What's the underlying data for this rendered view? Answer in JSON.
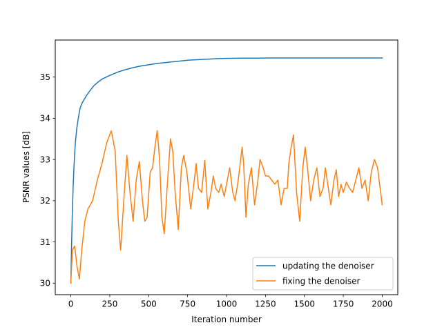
{
  "chart_data": {
    "type": "line",
    "title": "",
    "xlabel": "Iteration number",
    "ylabel": "PSNR values [dB]",
    "xlim": [
      -100,
      2100
    ],
    "ylim": [
      29.72,
      35.9
    ],
    "xticks": [
      0,
      250,
      500,
      750,
      1000,
      1250,
      1500,
      1750,
      2000
    ],
    "yticks": [
      30,
      31,
      32,
      33,
      34,
      35
    ],
    "grid": false,
    "legend_position": "lower-right",
    "series": [
      {
        "name": "updating the denoiser",
        "color": "#1f77b4",
        "x": [
          0,
          5,
          10,
          15,
          20,
          25,
          30,
          40,
          50,
          60,
          70,
          80,
          100,
          125,
          150,
          175,
          200,
          250,
          300,
          350,
          400,
          450,
          500,
          550,
          600,
          650,
          700,
          750,
          800,
          850,
          900,
          950,
          1000,
          1100,
          1200,
          1300,
          1400,
          1500,
          1600,
          1700,
          1800,
          1900,
          2000
        ],
        "y": [
          30.0,
          30.95,
          31.75,
          32.35,
          32.8,
          33.15,
          33.45,
          33.8,
          34.05,
          34.25,
          34.35,
          34.42,
          34.55,
          34.68,
          34.8,
          34.88,
          34.95,
          35.04,
          35.12,
          35.18,
          35.23,
          35.27,
          35.3,
          35.33,
          35.35,
          35.37,
          35.39,
          35.41,
          35.42,
          35.43,
          35.44,
          35.45,
          35.455,
          35.46,
          35.46,
          35.465,
          35.465,
          35.465,
          35.465,
          35.465,
          35.465,
          35.465,
          35.465
        ]
      },
      {
        "name": "fixing the denoiser",
        "color": "#ff7f0e",
        "x": [
          0,
          10,
          25,
          40,
          55,
          70,
          90,
          110,
          140,
          170,
          200,
          230,
          260,
          285,
          305,
          320,
          340,
          360,
          380,
          400,
          420,
          440,
          460,
          475,
          490,
          510,
          525,
          540,
          555,
          570,
          585,
          600,
          620,
          640,
          655,
          670,
          690,
          710,
          725,
          745,
          770,
          790,
          805,
          820,
          840,
          860,
          880,
          900,
          915,
          930,
          950,
          965,
          985,
          1005,
          1020,
          1040,
          1055,
          1075,
          1100,
          1110,
          1125,
          1140,
          1160,
          1180,
          1200,
          1215,
          1235,
          1250,
          1270,
          1290,
          1310,
          1330,
          1350,
          1370,
          1390,
          1400,
          1415,
          1430,
          1450,
          1470,
          1490,
          1505,
          1520,
          1540,
          1560,
          1580,
          1600,
          1620,
          1635,
          1650,
          1670,
          1690,
          1705,
          1720,
          1735,
          1750,
          1770,
          1790,
          1810,
          1830,
          1850,
          1870,
          1890,
          1910,
          1930,
          1950,
          1970,
          2000
        ],
        "y": [
          30.0,
          30.8,
          30.9,
          30.4,
          30.1,
          30.8,
          31.5,
          31.8,
          32.0,
          32.5,
          32.9,
          33.4,
          33.7,
          33.2,
          31.5,
          30.8,
          32.0,
          33.1,
          32.2,
          31.5,
          32.5,
          32.95,
          32.0,
          31.5,
          31.6,
          32.7,
          32.8,
          33.3,
          33.7,
          33.0,
          31.6,
          31.2,
          32.4,
          33.5,
          33.2,
          32.2,
          31.3,
          32.8,
          33.1,
          32.7,
          31.8,
          32.4,
          32.9,
          32.3,
          32.2,
          32.98,
          31.8,
          32.2,
          32.6,
          32.3,
          32.2,
          32.4,
          32.1,
          32.5,
          32.8,
          32.2,
          32.0,
          32.5,
          33.3,
          32.9,
          31.6,
          32.4,
          32.8,
          31.9,
          32.45,
          33.0,
          32.8,
          32.6,
          32.6,
          32.5,
          32.4,
          32.5,
          31.9,
          32.3,
          32.3,
          32.9,
          33.3,
          33.6,
          32.2,
          31.5,
          32.8,
          33.3,
          32.8,
          32.0,
          32.5,
          32.8,
          32.1,
          32.3,
          32.8,
          32.4,
          31.9,
          32.5,
          32.75,
          32.1,
          32.4,
          32.2,
          32.45,
          32.3,
          32.2,
          32.5,
          32.8,
          32.3,
          32.5,
          32.0,
          32.7,
          33.0,
          32.8,
          31.9
        ]
      }
    ]
  }
}
